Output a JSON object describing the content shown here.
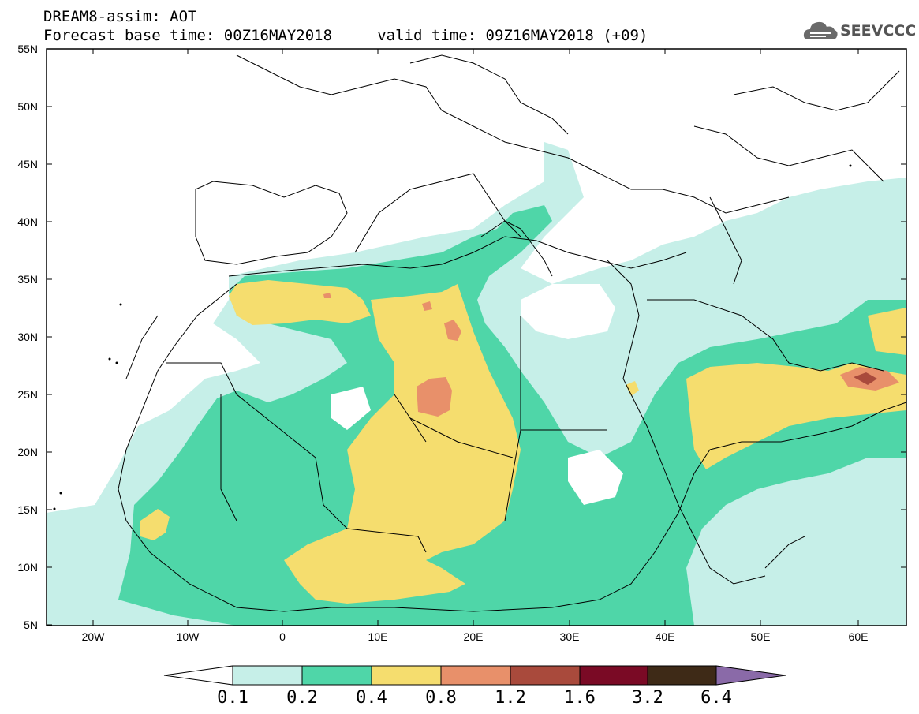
{
  "header": {
    "line1": "DREAM8-assim: AOT",
    "line2": "Forecast base time: 00Z16MAY2018     valid time: 09Z16MAY2018 (+09)"
  },
  "logo": {
    "text": "SEEVCCC",
    "icon": "cloud-logo-icon"
  },
  "axes": {
    "lat_labels": [
      "55N",
      "50N",
      "45N",
      "40N",
      "35N",
      "30N",
      "25N",
      "20N",
      "15N",
      "10N",
      "5N"
    ],
    "lon_labels": [
      "20W",
      "10W",
      "0",
      "10E",
      "20E",
      "30E",
      "40E",
      "50E",
      "60E"
    ]
  },
  "colorbar": {
    "labels": [
      "0.1",
      "0.2",
      "0.4",
      "0.8",
      "1.2",
      "1.6",
      "3.2",
      "6.4"
    ],
    "colors": [
      "#ffffff",
      "#c6efe8",
      "#4fd6a8",
      "#f5dd6e",
      "#e8906a",
      "#a94a3c",
      "#7a0a25",
      "#3e2a17",
      "#8a6aa8"
    ]
  },
  "colors": {
    "aot_0_1_0_2": "#c6efe8",
    "aot_0_2_0_4": "#4fd6a8",
    "aot_0_4_0_8": "#f5dd6e",
    "aot_0_8_1_2": "#e8906a",
    "aot_1_2_1_6": "#a94a3c"
  }
}
